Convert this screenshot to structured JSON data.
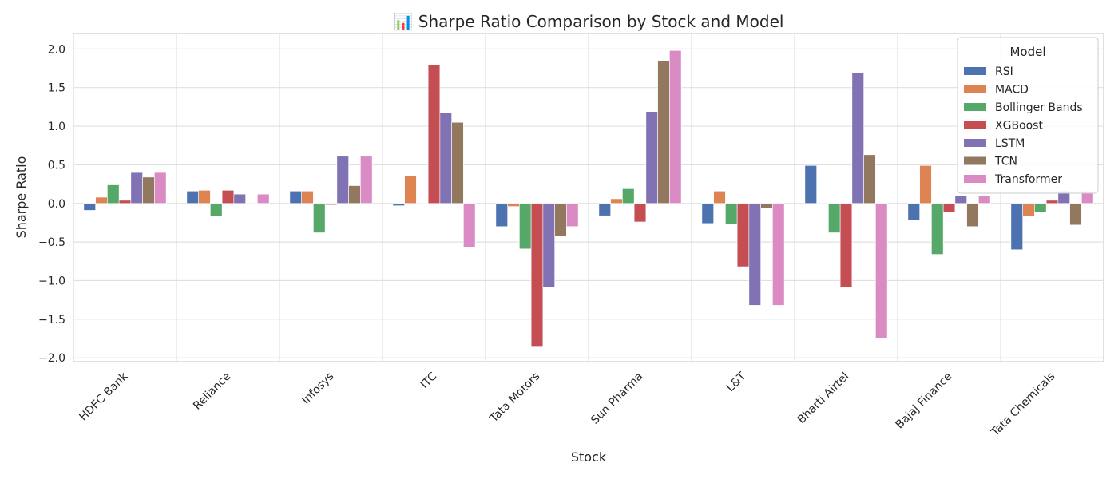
{
  "chart_data": {
    "type": "bar",
    "title": "📊 Sharpe Ratio Comparison by Stock and Model",
    "xlabel": "Stock",
    "ylabel": "Sharpe Ratio",
    "ylim": [
      -2.05,
      2.2
    ],
    "yticks": [
      -2.0,
      -1.5,
      -1.0,
      -0.5,
      0.0,
      0.5,
      1.0,
      1.5,
      2.0
    ],
    "ytick_labels": [
      "−2.0",
      "−1.5",
      "−1.0",
      "−0.5",
      "0.0",
      "0.5",
      "1.0",
      "1.5",
      "2.0"
    ],
    "grid": true,
    "legend_title": "Model",
    "legend_position": "top-right",
    "categories": [
      "HDFC Bank",
      "Reliance",
      "Infosys",
      "ITC",
      "Tata Motors",
      "Sun Pharma",
      "L&T",
      "Bharti Airtel",
      "Bajaj Finance",
      "Tata Chemicals"
    ],
    "series": [
      {
        "name": "RSI",
        "color": "#4c72b0",
        "values": [
          -0.09,
          0.16,
          0.16,
          -0.03,
          -0.3,
          -0.16,
          -0.26,
          0.49,
          -0.22,
          -0.6
        ]
      },
      {
        "name": "MACD",
        "color": "#dd8452",
        "values": [
          0.08,
          0.17,
          0.16,
          0.36,
          -0.04,
          0.06,
          0.16,
          0.0,
          0.49,
          -0.17
        ]
      },
      {
        "name": "Bollinger Bands",
        "color": "#55a868",
        "values": [
          0.24,
          -0.17,
          -0.38,
          -0.01,
          -0.59,
          0.19,
          -0.27,
          -0.38,
          -0.66,
          -0.11
        ]
      },
      {
        "name": "XGBoost",
        "color": "#c44e52",
        "values": [
          0.04,
          0.17,
          -0.02,
          1.79,
          -1.86,
          -0.24,
          -0.82,
          -1.09,
          -0.11,
          0.04
        ]
      },
      {
        "name": "LSTM",
        "color": "#8172b3",
        "values": [
          0.4,
          0.12,
          0.61,
          1.17,
          -1.09,
          1.19,
          -1.32,
          1.69,
          0.1,
          0.16
        ]
      },
      {
        "name": "TCN",
        "color": "#937860",
        "values": [
          0.34,
          0.0,
          0.23,
          1.05,
          -0.43,
          1.85,
          -0.06,
          0.63,
          -0.3,
          -0.28
        ]
      },
      {
        "name": "Transformer",
        "color": "#da8bc3",
        "values": [
          0.4,
          0.12,
          0.61,
          -0.57,
          -0.3,
          1.98,
          -1.32,
          -1.75,
          0.1,
          0.16
        ]
      }
    ]
  }
}
